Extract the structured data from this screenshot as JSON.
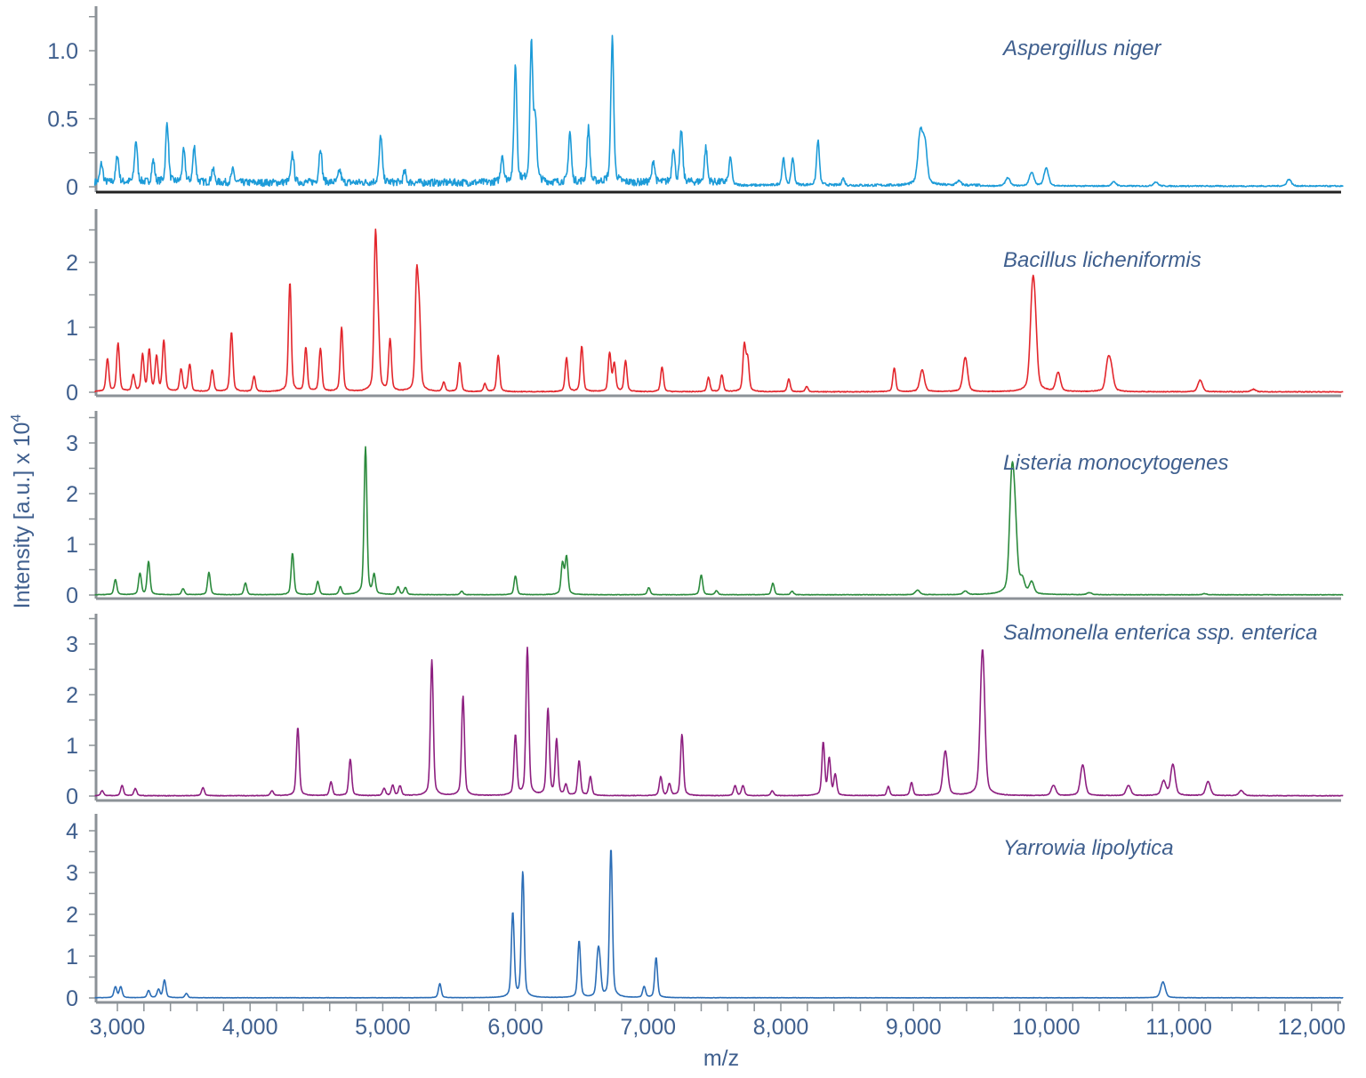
{
  "chart_data": {
    "type": "line",
    "xlabel": "m/z",
    "ylabel": "Intensity [a.u.] x 10",
    "ylabel_exponent": "4",
    "xlim": [
      2830,
      12240
    ],
    "xticks": [
      3000,
      4000,
      5000,
      6000,
      7000,
      8000,
      9000,
      10000,
      11000,
      12000
    ],
    "xtick_labels": [
      "3,000",
      "4,000",
      "5,000",
      "6,000",
      "7,000",
      "8,000",
      "9,000",
      "10,000",
      "11,000",
      "12,000"
    ],
    "xminor_step": 200,
    "grid": false,
    "legend": "per-panel labels, top-right",
    "series": [
      {
        "name": "Aspergillus niger",
        "color": "#1c9bd8",
        "ylim": [
          0,
          1.25
        ],
        "yticks": [
          0,
          0.5,
          1.0
        ],
        "ytick_labels": [
          "0",
          "0.5",
          "1.0"
        ],
        "yminor_step": 0.25,
        "peaks": [
          [
            2880,
            0.14
          ],
          [
            3000,
            0.2
          ],
          [
            3140,
            0.31
          ],
          [
            3270,
            0.16
          ],
          [
            3375,
            0.44
          ],
          [
            3500,
            0.23
          ],
          [
            3580,
            0.26
          ],
          [
            3720,
            0.1
          ],
          [
            3870,
            0.09
          ],
          [
            4320,
            0.22
          ],
          [
            4530,
            0.26
          ],
          [
            4675,
            0.09
          ],
          [
            4985,
            0.35
          ],
          [
            5165,
            0.08
          ],
          [
            5900,
            0.2
          ],
          [
            6000,
            0.86
          ],
          [
            6120,
            1.02
          ],
          [
            6150,
            0.45
          ],
          [
            6410,
            0.37
          ],
          [
            6550,
            0.4
          ],
          [
            6730,
            1.06
          ],
          [
            7040,
            0.16
          ],
          [
            7190,
            0.26
          ],
          [
            7250,
            0.38
          ],
          [
            7435,
            0.26
          ],
          [
            7620,
            0.21
          ],
          [
            8020,
            0.2
          ],
          [
            8090,
            0.2
          ],
          [
            8280,
            0.33
          ],
          [
            8470,
            0.05
          ],
          [
            9050,
            0.37
          ],
          [
            9085,
            0.3
          ],
          [
            9340,
            0.03
          ],
          [
            9710,
            0.06
          ],
          [
            9890,
            0.1
          ],
          [
            10000,
            0.13
          ],
          [
            10510,
            0.03
          ],
          [
            10825,
            0.03
          ],
          [
            11830,
            0.05
          ]
        ]
      },
      {
        "name": "Bacillus licheniformis",
        "color": "#e3262c",
        "ylim": [
          0,
          2.5
        ],
        "yticks": [
          0,
          1,
          2
        ],
        "ytick_labels": [
          "0",
          "1",
          "2"
        ],
        "yminor_step": 0.5,
        "peaks": [
          [
            2925,
            0.5
          ],
          [
            3005,
            0.74
          ],
          [
            3120,
            0.25
          ],
          [
            3190,
            0.56
          ],
          [
            3240,
            0.63
          ],
          [
            3295,
            0.53
          ],
          [
            3350,
            0.78
          ],
          [
            3480,
            0.34
          ],
          [
            3545,
            0.42
          ],
          [
            3715,
            0.33
          ],
          [
            3860,
            0.92
          ],
          [
            4030,
            0.23
          ],
          [
            4300,
            1.68
          ],
          [
            4420,
            0.67
          ],
          [
            4530,
            0.66
          ],
          [
            4690,
            0.99
          ],
          [
            4945,
            2.29
          ],
          [
            4965,
            0.9
          ],
          [
            5055,
            0.79
          ],
          [
            5255,
            1.68
          ],
          [
            5275,
            1.1
          ],
          [
            5460,
            0.14
          ],
          [
            5580,
            0.45
          ],
          [
            5770,
            0.12
          ],
          [
            5870,
            0.56
          ],
          [
            6385,
            0.52
          ],
          [
            6500,
            0.7
          ],
          [
            6710,
            0.59
          ],
          [
            6745,
            0.42
          ],
          [
            6830,
            0.47
          ],
          [
            7105,
            0.38
          ],
          [
            7455,
            0.22
          ],
          [
            7555,
            0.26
          ],
          [
            7725,
            0.7
          ],
          [
            7750,
            0.49
          ],
          [
            8060,
            0.2
          ],
          [
            8195,
            0.08
          ],
          [
            8855,
            0.37
          ],
          [
            9065,
            0.34
          ],
          [
            9390,
            0.53
          ],
          [
            9895,
            1.25
          ],
          [
            9915,
            0.86
          ],
          [
            10090,
            0.29
          ],
          [
            10465,
            0.42
          ],
          [
            10490,
            0.3
          ],
          [
            11160,
            0.18
          ],
          [
            11560,
            0.04
          ]
        ]
      },
      {
        "name": "Listeria monocytogenes",
        "color": "#2b8a3c",
        "ylim": [
          0,
          3.5
        ],
        "yticks": [
          0,
          1,
          2,
          3
        ],
        "ytick_labels": [
          "0",
          "1",
          "2",
          "3"
        ],
        "yminor_step": 0.5,
        "peaks": [
          [
            2985,
            0.3
          ],
          [
            3170,
            0.42
          ],
          [
            3235,
            0.65
          ],
          [
            3495,
            0.12
          ],
          [
            3690,
            0.44
          ],
          [
            3965,
            0.23
          ],
          [
            4320,
            0.82
          ],
          [
            4510,
            0.26
          ],
          [
            4680,
            0.15
          ],
          [
            4870,
            2.91
          ],
          [
            4935,
            0.37
          ],
          [
            5115,
            0.15
          ],
          [
            5170,
            0.14
          ],
          [
            5595,
            0.07
          ],
          [
            6000,
            0.37
          ],
          [
            6355,
            0.61
          ],
          [
            6385,
            0.74
          ],
          [
            7005,
            0.14
          ],
          [
            7400,
            0.39
          ],
          [
            7515,
            0.08
          ],
          [
            7940,
            0.23
          ],
          [
            8085,
            0.07
          ],
          [
            9030,
            0.09
          ],
          [
            9390,
            0.07
          ],
          [
            9740,
            2.09
          ],
          [
            9765,
            1.2
          ],
          [
            9820,
            0.25
          ],
          [
            9890,
            0.23
          ],
          [
            10325,
            0.04
          ],
          [
            11195,
            0.02
          ]
        ]
      },
      {
        "name": "Salmonella enterica ssp. enterica",
        "color": "#8d1f80",
        "ylim": [
          0,
          3.5
        ],
        "yticks": [
          0,
          1,
          2,
          3
        ],
        "ytick_labels": [
          "0",
          "1",
          "2",
          "3"
        ],
        "yminor_step": 0.5,
        "peaks": [
          [
            2885,
            0.1
          ],
          [
            3035,
            0.2
          ],
          [
            3135,
            0.14
          ],
          [
            3645,
            0.16
          ],
          [
            4165,
            0.1
          ],
          [
            4360,
            1.35
          ],
          [
            4610,
            0.27
          ],
          [
            4755,
            0.72
          ],
          [
            5010,
            0.14
          ],
          [
            5075,
            0.2
          ],
          [
            5130,
            0.19
          ],
          [
            5370,
            2.68
          ],
          [
            5605,
            1.96
          ],
          [
            6000,
            1.18
          ],
          [
            6090,
            2.91
          ],
          [
            6245,
            1.7
          ],
          [
            6310,
            1.09
          ],
          [
            6380,
            0.2
          ],
          [
            6480,
            0.68
          ],
          [
            6565,
            0.37
          ],
          [
            7095,
            0.37
          ],
          [
            7160,
            0.23
          ],
          [
            7255,
            1.21
          ],
          [
            7655,
            0.2
          ],
          [
            7715,
            0.2
          ],
          [
            7935,
            0.1
          ],
          [
            8320,
            1.04
          ],
          [
            8365,
            0.72
          ],
          [
            8410,
            0.4
          ],
          [
            8810,
            0.18
          ],
          [
            8985,
            0.26
          ],
          [
            9240,
            0.88
          ],
          [
            9520,
            2.89
          ],
          [
            10055,
            0.2
          ],
          [
            10275,
            0.61
          ],
          [
            10620,
            0.2
          ],
          [
            10885,
            0.28
          ],
          [
            10955,
            0.61
          ],
          [
            11220,
            0.28
          ],
          [
            11470,
            0.1
          ]
        ]
      },
      {
        "name": "Yarrowia lipolytica",
        "color": "#2b6db6",
        "ylim": [
          0,
          4.3
        ],
        "yticks": [
          0,
          1,
          2,
          3,
          4
        ],
        "ytick_labels": [
          "0",
          "1",
          "2",
          "3",
          "4"
        ],
        "yminor_step": 0.5,
        "peaks": [
          [
            2985,
            0.26
          ],
          [
            3025,
            0.26
          ],
          [
            3235,
            0.17
          ],
          [
            3310,
            0.2
          ],
          [
            3355,
            0.42
          ],
          [
            3520,
            0.1
          ],
          [
            5430,
            0.34
          ],
          [
            5980,
            2.02
          ],
          [
            6055,
            3.0
          ],
          [
            6480,
            1.36
          ],
          [
            6620,
            0.83
          ],
          [
            6635,
            0.7
          ],
          [
            6720,
            3.57
          ],
          [
            6970,
            0.26
          ],
          [
            7060,
            0.96
          ],
          [
            10880,
            0.38
          ]
        ]
      }
    ]
  }
}
